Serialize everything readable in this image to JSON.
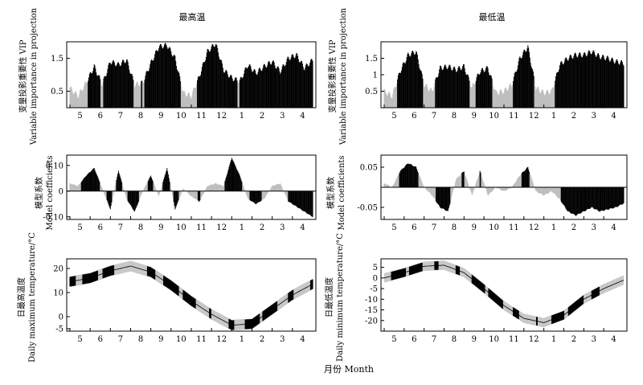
{
  "figure": {
    "x_axis_label": "月份 Month",
    "column_titles": [
      "最高温",
      "最低温"
    ],
    "row_labels": [
      [
        "变量投影重要性 VIP",
        "Variable importance in projection"
      ],
      [
        "模型系数",
        "Model coefficients"
      ],
      [
        "日最高温度",
        "Daily maximum temperature/°C"
      ],
      [
        "日最低温度",
        "Daily minimum temperature/°C"
      ]
    ]
  },
  "chart_data": [
    {
      "type": "bar",
      "title": "最高温",
      "ylabel": "变量投影重要性 VIP Variable importance in projection",
      "xlabel": "",
      "x_ticks": [
        "5",
        "6",
        "7",
        "8",
        "9",
        "10",
        "11",
        "12",
        "1",
        "2",
        "3",
        "4"
      ],
      "ylim": [
        0,
        2.0
      ],
      "y_ticks": [
        0.5,
        1.5
      ],
      "grid": false,
      "fill_rule": "black if VIP > 0.8, grey otherwise",
      "colors": {
        "important": "#000000",
        "unimportant": "#bdbdbd"
      },
      "series": [
        {
          "x": [
            0,
            12,
            24,
            36,
            48,
            60,
            72,
            84,
            96,
            108,
            120,
            132,
            144,
            156,
            168,
            180,
            192,
            204,
            216,
            228,
            240,
            252,
            264,
            276,
            288,
            300,
            312,
            324,
            336,
            348,
            360
          ],
          "values": [
            0.6,
            0.35,
            0.75,
            1.25,
            0.7,
            1.4,
            1.3,
            1.45,
            0.7,
            0.75,
            1.35,
            1.85,
            1.9,
            1.5,
            0.45,
            0.35,
            0.95,
            1.7,
            1.95,
            1.15,
            0.9,
            0.8,
            1.3,
            1.05,
            1.25,
            1.4,
            1.1,
            1.5,
            1.6,
            1.2,
            1.45
          ]
        }
      ]
    },
    {
      "type": "bar",
      "title": "最低温",
      "ylabel": "变量投影重要性 VIP Variable importance in projection",
      "xlabel": "",
      "x_ticks": [
        "5",
        "6",
        "7",
        "8",
        "9",
        "10",
        "11",
        "12",
        "1",
        "2",
        "3",
        "4"
      ],
      "ylim": [
        0,
        2.0
      ],
      "y_ticks": [
        0.5,
        1.0,
        1.5
      ],
      "grid": false,
      "fill_rule": "black if VIP > 0.8, grey otherwise",
      "colors": {
        "important": "#000000",
        "unimportant": "#bdbdbd"
      },
      "series": [
        {
          "x": [
            0,
            12,
            24,
            36,
            48,
            60,
            72,
            84,
            96,
            108,
            120,
            132,
            144,
            156,
            168,
            180,
            192,
            204,
            216,
            228,
            240,
            252,
            264,
            276,
            288,
            300,
            312,
            324,
            336,
            348,
            360
          ],
          "values": [
            0.5,
            0.35,
            1.1,
            1.6,
            1.7,
            0.7,
            0.5,
            1.2,
            1.25,
            1.15,
            1.25,
            0.6,
            1.1,
            1.2,
            0.45,
            0.5,
            0.7,
            1.5,
            1.85,
            0.6,
            0.45,
            0.5,
            1.3,
            1.5,
            1.6,
            1.6,
            1.7,
            1.55,
            1.5,
            1.4,
            1.35
          ]
        }
      ]
    },
    {
      "type": "bar",
      "title": "",
      "ylabel": "模型系数 Model coefficients",
      "xlabel": "",
      "x_ticks": [
        "5",
        "6",
        "7",
        "8",
        "9",
        "10",
        "11",
        "12",
        "1",
        "2",
        "3",
        "4"
      ],
      "ylim": [
        -0.11,
        0.14
      ],
      "y_ticks": [
        0.1,
        0,
        -0.1
      ],
      "y_tick_labels": [
        "0.10",
        "0",
        "-0.10"
      ],
      "grid": false,
      "colors": {
        "important": "#000000",
        "unimportant": "#bdbdbd"
      },
      "series": [
        {
          "x": [
            0,
            12,
            24,
            36,
            48,
            60,
            72,
            84,
            96,
            108,
            120,
            132,
            144,
            156,
            168,
            180,
            192,
            204,
            216,
            228,
            240,
            252,
            264,
            276,
            288,
            300,
            312,
            324,
            336,
            348,
            360
          ],
          "values": [
            0.03,
            0.02,
            0.06,
            0.09,
            0.01,
            -0.07,
            0.08,
            -0.03,
            -0.08,
            0.0,
            0.06,
            -0.02,
            0.09,
            -0.07,
            0.01,
            -0.02,
            -0.04,
            0.02,
            0.03,
            0.02,
            0.13,
            0.06,
            -0.03,
            -0.05,
            -0.03,
            0.02,
            0.03,
            -0.04,
            -0.06,
            -0.08,
            -0.1
          ]
        }
      ]
    },
    {
      "type": "bar",
      "title": "",
      "ylabel": "模型系数 Model coefficients",
      "xlabel": "",
      "x_ticks": [
        "5",
        "6",
        "7",
        "8",
        "9",
        "10",
        "11",
        "12",
        "1",
        "2",
        "3",
        "4"
      ],
      "ylim": [
        -0.08,
        0.08
      ],
      "y_ticks": [
        0.05,
        -0.05
      ],
      "y_tick_labels": [
        "0.05",
        "-0.05"
      ],
      "grid": false,
      "colors": {
        "important": "#000000",
        "unimportant": "#bdbdbd"
      },
      "series": [
        {
          "x": [
            0,
            12,
            24,
            36,
            48,
            60,
            72,
            84,
            96,
            108,
            120,
            132,
            144,
            156,
            168,
            180,
            192,
            204,
            216,
            228,
            240,
            252,
            264,
            276,
            288,
            300,
            312,
            324,
            336,
            348,
            360
          ],
          "values": [
            0.01,
            0.0,
            0.04,
            0.06,
            0.05,
            0.0,
            -0.02,
            -0.05,
            -0.06,
            0.02,
            0.04,
            -0.02,
            0.04,
            -0.02,
            0.0,
            -0.01,
            0.0,
            0.03,
            0.05,
            -0.01,
            -0.02,
            -0.01,
            -0.03,
            -0.06,
            -0.07,
            -0.06,
            -0.05,
            -0.06,
            -0.055,
            -0.05,
            -0.04
          ]
        }
      ]
    },
    {
      "type": "line",
      "title": "",
      "ylabel": "日最高温度 Daily maximum temperature/°C",
      "xlabel": "",
      "x_ticks": [
        "5",
        "6",
        "7",
        "8",
        "9",
        "10",
        "11",
        "12",
        "1",
        "2",
        "3",
        "4"
      ],
      "ylim": [
        -6,
        24
      ],
      "y_ticks": [
        20,
        10,
        0,
        -5
      ],
      "y_tick_labels": [
        "20",
        "10",
        "0",
        "-5"
      ],
      "grid": false,
      "band": "grey ±2 °C range; black segments mark significant periods",
      "colors": {
        "mean_line": "#000000",
        "band": "#c8c8c8",
        "significant": "#000000"
      },
      "series": [
        {
          "x": [
            0,
            30,
            60,
            90,
            120,
            150,
            180,
            210,
            240,
            270,
            300,
            330,
            360
          ],
          "values": [
            14.5,
            16,
            19,
            21,
            18.5,
            13,
            6.5,
            1,
            -3.5,
            -3,
            3,
            9,
            13.5
          ]
        }
      ]
    },
    {
      "type": "line",
      "title": "",
      "ylabel": "日最低温度 Daily minimum temperature/°C",
      "xlabel": "",
      "x_ticks": [
        "5",
        "6",
        "7",
        "8",
        "9",
        "10",
        "11",
        "12",
        "1",
        "2",
        "3",
        "4"
      ],
      "ylim": [
        -25,
        9
      ],
      "y_ticks": [
        5,
        0,
        -5,
        -10,
        -15,
        -20
      ],
      "y_tick_labels": [
        "5",
        "0",
        "-5",
        "-10",
        "-15",
        "-20"
      ],
      "grid": false,
      "band": "grey ±2 °C range; black segments mark significant periods",
      "colors": {
        "mean_line": "#000000",
        "band": "#c8c8c8",
        "significant": "#000000"
      },
      "series": [
        {
          "x": [
            0,
            30,
            60,
            90,
            120,
            150,
            180,
            210,
            240,
            270,
            300,
            330,
            360
          ],
          "values": [
            0,
            2.5,
            5.5,
            6,
            2.5,
            -5,
            -13,
            -19,
            -21,
            -17.5,
            -10,
            -5,
            -1
          ]
        }
      ]
    }
  ]
}
